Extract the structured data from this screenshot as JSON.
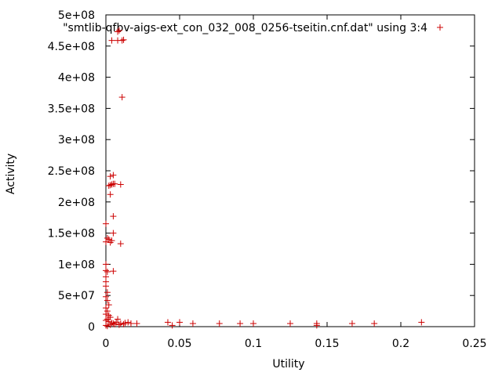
{
  "chart_data": {
    "type": "scatter",
    "title": "",
    "xlabel": "Utility",
    "ylabel": "Activity",
    "xlim": [
      0,
      0.25
    ],
    "ylim": [
      0,
      500000000
    ],
    "x_ticks": [
      0,
      0.05,
      0.1,
      0.15,
      0.2,
      0.25
    ],
    "x_tick_labels": [
      "0",
      "0.05",
      "0.1",
      "0.15",
      "0.2",
      "0.25"
    ],
    "y_ticks": [
      0,
      50000000,
      100000000,
      150000000,
      200000000,
      250000000,
      300000000,
      350000000,
      400000000,
      450000000,
      500000000
    ],
    "y_tick_labels": [
      "0",
      "5e+07",
      "1e+08",
      "1.5e+08",
      "2e+08",
      "2.5e+08",
      "3e+08",
      "3.5e+08",
      "4e+08",
      "4.5e+08",
      "5e+08"
    ],
    "grid": false,
    "legend_position": "top-right",
    "marker_color": "#cc0000",
    "series": [
      {
        "name": "\"smtlib-qfbv-aigs-ext_con_032_008_0256-tseitin.cnf.dat\" using 3:4",
        "points": [
          [
            0.008,
            473000000
          ],
          [
            0.009,
            475000000
          ],
          [
            0.004,
            459000000
          ],
          [
            0.008,
            459000000
          ],
          [
            0.011,
            459000000
          ],
          [
            0.012,
            460000000
          ],
          [
            0.011,
            368000000
          ],
          [
            0.003,
            241000000
          ],
          [
            0.005,
            243000000
          ],
          [
            0.002,
            226000000
          ],
          [
            0.003,
            227000000
          ],
          [
            0.004,
            228000000
          ],
          [
            0.005,
            229000000
          ],
          [
            0.006,
            229000000
          ],
          [
            0.01,
            228000000
          ],
          [
            0.003,
            212000000
          ],
          [
            0.005,
            177000000
          ],
          [
            0.0,
            165000000
          ],
          [
            0.005,
            150000000
          ],
          [
            0.001,
            142000000
          ],
          [
            0.002,
            140000000
          ],
          [
            0.0,
            136000000
          ],
          [
            0.003,
            135000000
          ],
          [
            0.004,
            138000000
          ],
          [
            0.01,
            133000000
          ],
          [
            0.0,
            100000000
          ],
          [
            0.0,
            90000000
          ],
          [
            0.001,
            88000000
          ],
          [
            0.005,
            89000000
          ],
          [
            0.0,
            80000000
          ],
          [
            0.0,
            72000000
          ],
          [
            0.0,
            65000000
          ],
          [
            0.001,
            55000000
          ],
          [
            0.0,
            48000000
          ],
          [
            0.001,
            42000000
          ],
          [
            0.002,
            35000000
          ],
          [
            0.0,
            30000000
          ],
          [
            0.001,
            25000000
          ],
          [
            0.0,
            20000000
          ],
          [
            0.002,
            18000000
          ],
          [
            0.003,
            15000000
          ],
          [
            0.001,
            12000000
          ],
          [
            0.0,
            10000000
          ],
          [
            0.002,
            8000000
          ],
          [
            0.004,
            6000000
          ],
          [
            0.005,
            5000000
          ],
          [
            0.006,
            4000000
          ],
          [
            0.007,
            7000000
          ],
          [
            0.008,
            12000000
          ],
          [
            0.009,
            3000000
          ],
          [
            0.01,
            5000000
          ],
          [
            0.012,
            4000000
          ],
          [
            0.013,
            6000000
          ],
          [
            0.015,
            7000000
          ],
          [
            0.017,
            5000000
          ],
          [
            0.021,
            5000000
          ],
          [
            0.042,
            7000000
          ],
          [
            0.045,
            2000000
          ],
          [
            0.05,
            7000000
          ],
          [
            0.059,
            5000000
          ],
          [
            0.077,
            5000000
          ],
          [
            0.091,
            5000000
          ],
          [
            0.1,
            5000000
          ],
          [
            0.125,
            5000000
          ],
          [
            0.143,
            5000000
          ],
          [
            0.143,
            2000000
          ],
          [
            0.167,
            5000000
          ],
          [
            0.182,
            5000000
          ],
          [
            0.214,
            7000000
          ],
          [
            0.0,
            2000000
          ],
          [
            0.001,
            1000000
          ],
          [
            0.003,
            3000000
          ]
        ]
      }
    ]
  }
}
